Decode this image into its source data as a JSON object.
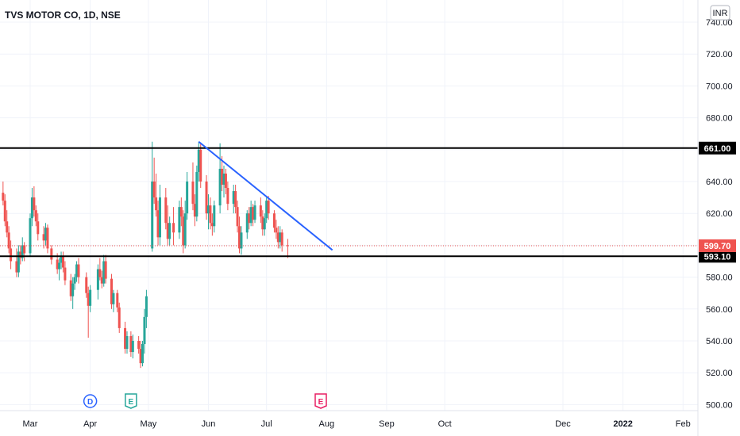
{
  "chart_data": {
    "type": "candlestick",
    "title": "TVS MOTOR CO, 1D, NSE",
    "currency": "INR",
    "colors": {
      "up": "#26a69a",
      "down": "#ef5350",
      "trendline": "#2962ff",
      "level": "#000000",
      "last_price": "#ef5350"
    },
    "y_axis": {
      "ticks": [
        "740.00",
        "720.00",
        "700.00",
        "680.00",
        "660.00",
        "640.00",
        "620.00",
        "600.00",
        "580.00",
        "560.00",
        "540.00",
        "520.00",
        "500.00"
      ],
      "ylim": [
        497,
        746
      ]
    },
    "x_axis": {
      "ticks": [
        "Mar",
        "Apr",
        "May",
        "Jun",
        "Jul",
        "Aug",
        "Sep",
        "Oct",
        "Dec",
        "2022",
        "Feb"
      ]
    },
    "horizontal_levels": [
      {
        "price": 661.0,
        "label": "661.00"
      },
      {
        "price": 593.1,
        "label": "593.10"
      }
    ],
    "last_price": {
      "price": 599.7,
      "label": "599.70"
    },
    "trendline": {
      "start": {
        "date": "2021-05-27",
        "price": 665
      },
      "end": {
        "date": "2021-08-04",
        "price": 597
      }
    },
    "event_markers": [
      {
        "text": "D",
        "date": "2021-04-01",
        "color": "#2962ff",
        "shape": "circle"
      },
      {
        "text": "E",
        "date": "2021-04-22",
        "color": "#26a69a",
        "shape": "flag"
      },
      {
        "text": "E",
        "date": "2021-07-29",
        "color": "#e91e63",
        "shape": "flag"
      }
    ],
    "candles": [
      [
        "2021-02-11",
        650,
        652,
        640,
        642
      ],
      [
        "2021-02-12",
        642,
        645,
        630,
        633
      ],
      [
        "2021-02-15",
        633,
        640,
        625,
        628
      ],
      [
        "2021-02-16",
        628,
        632,
        612,
        615
      ],
      [
        "2021-02-17",
        615,
        622,
        605,
        608
      ],
      [
        "2021-02-18",
        608,
        612,
        595,
        598
      ],
      [
        "2021-02-19",
        598,
        603,
        585,
        590
      ],
      [
        "2021-02-22",
        590,
        598,
        580,
        583
      ],
      [
        "2021-02-23",
        583,
        600,
        580,
        596
      ],
      [
        "2021-02-24",
        596,
        600,
        588,
        592
      ],
      [
        "2021-02-25",
        592,
        605,
        590,
        600
      ],
      [
        "2021-02-26",
        600,
        602,
        590,
        595
      ],
      [
        "2021-03-01",
        595,
        620,
        593,
        617
      ],
      [
        "2021-03-02",
        617,
        636,
        612,
        630
      ],
      [
        "2021-03-03",
        630,
        637,
        618,
        622
      ],
      [
        "2021-03-04",
        622,
        625,
        612,
        615
      ],
      [
        "2021-03-05",
        615,
        620,
        603,
        607
      ],
      [
        "2021-03-08",
        607,
        612,
        598,
        603
      ],
      [
        "2021-03-09",
        603,
        614,
        600,
        611
      ],
      [
        "2021-03-10",
        611,
        613,
        595,
        598
      ],
      [
        "2021-03-12",
        598,
        600,
        588,
        591
      ],
      [
        "2021-03-15",
        591,
        595,
        582,
        585
      ],
      [
        "2021-03-16",
        585,
        592,
        578,
        589
      ],
      [
        "2021-03-17",
        589,
        596,
        585,
        593
      ],
      [
        "2021-03-18",
        593,
        596,
        583,
        586
      ],
      [
        "2021-03-19",
        586,
        590,
        575,
        578
      ],
      [
        "2021-03-22",
        578,
        582,
        565,
        568
      ],
      [
        "2021-03-23",
        568,
        580,
        560,
        576
      ],
      [
        "2021-03-24",
        576,
        582,
        572,
        580
      ],
      [
        "2021-03-25",
        580,
        590,
        577,
        588
      ],
      [
        "2021-03-26",
        588,
        592,
        576,
        580
      ],
      [
        "2021-03-30",
        580,
        583,
        567,
        570
      ],
      [
        "2021-03-31",
        570,
        574,
        542,
        562
      ],
      [
        "2021-04-01",
        562,
        575,
        558,
        572
      ],
      [
        "2021-04-05",
        572,
        588,
        566,
        585
      ],
      [
        "2021-04-06",
        585,
        592,
        578,
        580
      ],
      [
        "2021-04-07",
        580,
        584,
        573,
        576
      ],
      [
        "2021-04-08",
        576,
        594,
        574,
        590
      ],
      [
        "2021-04-09",
        590,
        594,
        576,
        579
      ],
      [
        "2021-04-12",
        579,
        582,
        560,
        563
      ],
      [
        "2021-04-13",
        563,
        572,
        558,
        570
      ],
      [
        "2021-04-15",
        570,
        572,
        558,
        561
      ],
      [
        "2021-04-16",
        561,
        564,
        545,
        548
      ],
      [
        "2021-04-19",
        548,
        552,
        532,
        535
      ],
      [
        "2021-04-20",
        535,
        546,
        532,
        543
      ],
      [
        "2021-04-22",
        543,
        546,
        530,
        533
      ],
      [
        "2021-04-23",
        533,
        544,
        529,
        540
      ],
      [
        "2021-04-26",
        540,
        543,
        532,
        535
      ],
      [
        "2021-04-27",
        535,
        540,
        523,
        526
      ],
      [
        "2021-04-28",
        526,
        540,
        524,
        538
      ],
      [
        "2021-04-29",
        538,
        560,
        532,
        555
      ],
      [
        "2021-04-30",
        555,
        572,
        548,
        568
      ],
      [
        "2021-05-03",
        598,
        665,
        596,
        640
      ],
      [
        "2021-05-04",
        640,
        655,
        626,
        630
      ],
      [
        "2021-05-05",
        630,
        645,
        618,
        622
      ],
      [
        "2021-05-06",
        622,
        628,
        600,
        605
      ],
      [
        "2021-05-07",
        605,
        638,
        600,
        630
      ],
      [
        "2021-05-10",
        630,
        636,
        610,
        614
      ],
      [
        "2021-05-11",
        614,
        625,
        600,
        604
      ],
      [
        "2021-05-12",
        604,
        618,
        600,
        614
      ],
      [
        "2021-05-14",
        614,
        624,
        600,
        608
      ],
      [
        "2021-05-17",
        608,
        628,
        604,
        624
      ],
      [
        "2021-05-18",
        624,
        630,
        612,
        618
      ],
      [
        "2021-05-19",
        618,
        622,
        595,
        600
      ],
      [
        "2021-05-20",
        600,
        628,
        598,
        620
      ],
      [
        "2021-05-21",
        620,
        646,
        616,
        640
      ],
      [
        "2021-05-24",
        640,
        652,
        622,
        626
      ],
      [
        "2021-05-25",
        626,
        632,
        612,
        618
      ],
      [
        "2021-05-26",
        618,
        650,
        615,
        646
      ],
      [
        "2021-05-27",
        646,
        665,
        640,
        660
      ],
      [
        "2021-05-28",
        660,
        664,
        636,
        640
      ],
      [
        "2021-05-31",
        640,
        644,
        616,
        620
      ],
      [
        "2021-06-01",
        620,
        632,
        610,
        625
      ],
      [
        "2021-06-02",
        625,
        630,
        610,
        614
      ],
      [
        "2021-06-03",
        614,
        620,
        606,
        612
      ],
      [
        "2021-06-04",
        612,
        628,
        608,
        625
      ],
      [
        "2021-06-07",
        625,
        664,
        620,
        648
      ],
      [
        "2021-06-08",
        648,
        656,
        634,
        638
      ],
      [
        "2021-06-09",
        638,
        650,
        630,
        645
      ],
      [
        "2021-06-10",
        645,
        648,
        632,
        636
      ],
      [
        "2021-06-11",
        636,
        640,
        622,
        626
      ],
      [
        "2021-06-14",
        626,
        638,
        620,
        634
      ],
      [
        "2021-06-15",
        634,
        638,
        620,
        624
      ],
      [
        "2021-06-16",
        624,
        628,
        608,
        612
      ],
      [
        "2021-06-17",
        612,
        618,
        595,
        598
      ],
      [
        "2021-06-18",
        598,
        612,
        594,
        608
      ],
      [
        "2021-06-21",
        608,
        622,
        604,
        620
      ],
      [
        "2021-06-22",
        620,
        624,
        610,
        614
      ],
      [
        "2021-06-23",
        614,
        628,
        612,
        624
      ],
      [
        "2021-06-24",
        624,
        626,
        612,
        616
      ],
      [
        "2021-06-25",
        616,
        628,
        614,
        625
      ],
      [
        "2021-06-28",
        625,
        630,
        614,
        618
      ],
      [
        "2021-06-29",
        618,
        622,
        606,
        610
      ],
      [
        "2021-06-30",
        610,
        620,
        606,
        617
      ],
      [
        "2021-07-01",
        617,
        630,
        614,
        628
      ],
      [
        "2021-07-02",
        628,
        631,
        616,
        620
      ],
      [
        "2021-07-05",
        620,
        622,
        608,
        611
      ],
      [
        "2021-07-06",
        611,
        616,
        604,
        608
      ],
      [
        "2021-07-07",
        608,
        612,
        598,
        602
      ],
      [
        "2021-07-08",
        602,
        612,
        598,
        608
      ],
      [
        "2021-07-09",
        608,
        610,
        596,
        600
      ],
      [
        "2021-07-12",
        600,
        604,
        592,
        599.7
      ]
    ]
  }
}
